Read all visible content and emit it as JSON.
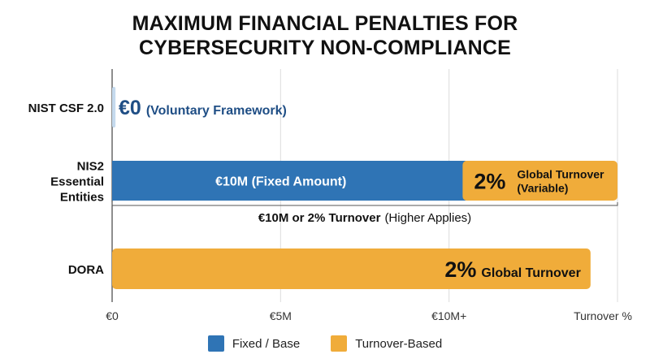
{
  "colors": {
    "fixed": "#2F74B5",
    "turnover": "#F0AC3A",
    "voluntary": "#C5DAEE",
    "voluntary_text": "#1F4E85",
    "grid": "#DCDCDC",
    "axis": "#444444"
  },
  "chart_data": {
    "type": "bar",
    "orientation": "horizontal",
    "stacked": true,
    "title_lines": [
      "MAXIMUM FINANCIAL PENALTIES FOR",
      "CYBERSECURITY NON-COMPLIANCE"
    ],
    "x_ticks": [
      {
        "label": "€0",
        "value": 0
      },
      {
        "label": "€5M",
        "value": 5
      },
      {
        "label": "€10M+",
        "value": 10
      },
      {
        "label": "Turnover %",
        "value": 15
      }
    ],
    "categories": [
      {
        "label_lines": [
          "NIST CSF 2.0"
        ]
      },
      {
        "label_lines": [
          "NIS2",
          "Essential",
          "Entities"
        ]
      },
      {
        "label_lines": [
          "DORA"
        ]
      }
    ],
    "bars": [
      {
        "category": 0,
        "segments": [
          {
            "kind": "voluntary",
            "start": 0,
            "end": 0.1,
            "big": "€0",
            "text": "(Voluntary Framework)"
          }
        ]
      },
      {
        "category": 1,
        "segments": [
          {
            "kind": "fixed",
            "start": 0,
            "end": 10.5,
            "text": "€10M (Fixed Amount)"
          },
          {
            "kind": "turnover",
            "start": 10.5,
            "end": 15,
            "big": "2%",
            "text_lines": [
              "Global Turnover",
              "(Variable)"
            ]
          }
        ],
        "note_bold": "€10M or 2% Turnover",
        "note_rest": "(Higher Applies)"
      },
      {
        "category": 2,
        "segments": [
          {
            "kind": "turnover",
            "start": 0,
            "end": 14.2,
            "big": "2%",
            "text": "Global Turnover"
          }
        ]
      }
    ],
    "legend": [
      {
        "label": "Fixed / Base",
        "kind": "fixed"
      },
      {
        "label": "Turnover-Based",
        "kind": "turnover"
      }
    ]
  }
}
